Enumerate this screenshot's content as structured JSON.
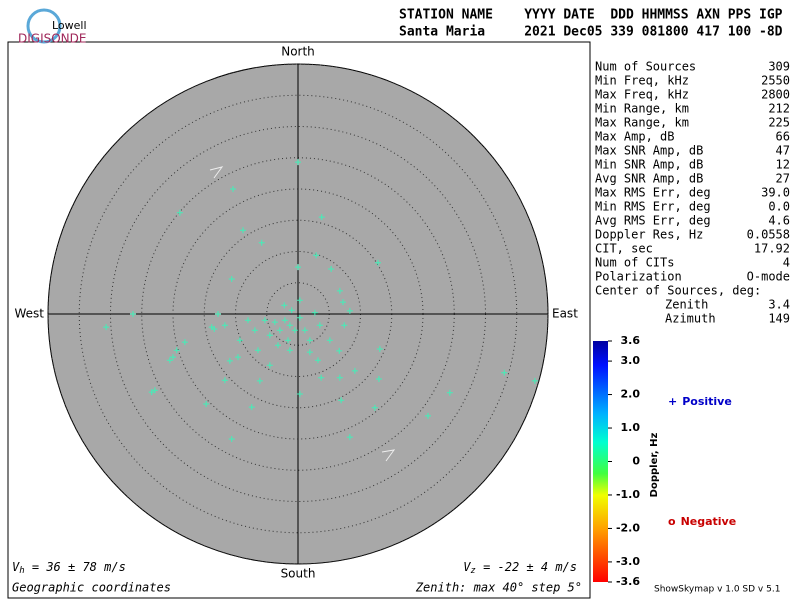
{
  "chart_data": {
    "type": "skymap",
    "logo": {
      "top": "Lowell",
      "bottom": "DIGISONDE"
    },
    "header": [
      "STATION NAME    YYYY DATE  DDD HHMMSS AXN PPS IGP",
      "Santa Maria     2021 Dec05 339 081800 417 100 -8D"
    ],
    "directions": {
      "north": "North",
      "south": "South",
      "east": "East",
      "west": "West"
    },
    "rlim": [
      0,
      40
    ],
    "rticks": [
      5,
      10,
      15,
      20,
      25,
      30,
      35,
      40
    ],
    "grid": true,
    "series": [
      {
        "name": "Positive",
        "symbol": "+",
        "color": "#0000c8",
        "marker_color": "#40f0b8",
        "x": [
          0,
          -10.4,
          -18.9,
          -8.8,
          3.8,
          -5.8,
          2.9,
          0,
          5.3,
          12.8,
          -10.6,
          6.7,
          7.2,
          8.3,
          -30.7,
          -26.4,
          -12.8,
          -13.4,
          -19.4,
          -20.5,
          -22.9,
          -14.7,
          -7.4,
          -10.6,
          6.9,
          8.3,
          12.3,
          20.8,
          24.3,
          33,
          37.9,
          12.95,
          13.1,
          9.1,
          3.7,
          0.3,
          -6.1,
          -11.7,
          -9.6,
          -18.1,
          -6.4,
          3.2,
          6.6,
          -1.3,
          -2.1,
          -1.3,
          -0.5,
          -2.9,
          -3.7,
          0.3,
          1.1,
          -1.6,
          -4.5,
          -5.3,
          -1,
          -2.2,
          1.9,
          3.5,
          -6.9,
          -8,
          0.3,
          2.7,
          -3.2,
          -11.7,
          -9.3,
          1.9,
          5.1,
          7.4,
          -23.4,
          -20,
          -13.8,
          -10.9,
          -4.5,
          6.7
        ],
        "y": [
          24.3,
          20,
          16.2,
          13.4,
          15.5,
          11.4,
          9.4,
          7.5,
          7.2,
          8.2,
          5.6,
          3.7,
          1.9,
          0.5,
          -2.1,
          0,
          0,
          -2.4,
          -5.8,
          -7.4,
          -12.2,
          -14.4,
          -14.9,
          -20,
          -13.8,
          -19.7,
          -15,
          -16.3,
          -12.6,
          -9.4,
          -10.7,
          -10.4,
          -5.6,
          -9.1,
          -10.2,
          -12.8,
          -10.7,
          -10.6,
          -6.9,
          -4.5,
          -5.8,
          -7.4,
          -5.9,
          -5.8,
          -1,
          -1.8,
          -2.6,
          -2.6,
          -1.3,
          -0.6,
          -2.6,
          -4.2,
          -3.4,
          -1,
          0.6,
          1.4,
          -4.2,
          -1.8,
          -2.6,
          -1,
          2.2,
          0.2,
          -5,
          -1.8,
          -4.2,
          -6.1,
          -4.2,
          -1.8,
          -12.5,
          -6.9,
          -2.1,
          -7.5,
          -8.2,
          -10.2
        ]
      },
      {
        "name": "Negative",
        "symbol": "o",
        "color": "#c80000",
        "marker_color": "#ff0000",
        "x": [],
        "y": []
      }
    ],
    "stats": [
      {
        "label": "Num of Sources",
        "value": "309"
      },
      {
        "label": "Min Freq, kHz",
        "value": "2550"
      },
      {
        "label": "Max Freq, kHz",
        "value": "2800"
      },
      {
        "label": "Min Range, km",
        "value": "212"
      },
      {
        "label": "Max Range, km",
        "value": "225"
      },
      {
        "label": "Max Amp, dB",
        "value": "66"
      },
      {
        "label": "Max SNR Amp, dB",
        "value": "47"
      },
      {
        "label": "Min SNR Amp, dB",
        "value": "12"
      },
      {
        "label": "Avg SNR Amp, dB",
        "value": "27"
      },
      {
        "label": "Max RMS Err, deg",
        "value": "39.0"
      },
      {
        "label": "Min RMS Err, deg",
        "value": "0.0"
      },
      {
        "label": "Avg RMS Err, deg",
        "value": "4.6"
      },
      {
        "label": "Doppler Res, Hz",
        "value": "0.0558"
      },
      {
        "label": "CIT, sec",
        "value": "17.92"
      },
      {
        "label": "Num of CITs",
        "value": "4"
      },
      {
        "label": "Polarization",
        "value": "O-mode"
      }
    ],
    "center": {
      "label": "Center of Sources, deg:",
      "rows": [
        {
          "label": "Zenith",
          "value": "3.4"
        },
        {
          "label": "Azimuth",
          "value": "149"
        }
      ]
    },
    "colorbar": {
      "label": "Doppler, Hz",
      "lim": [
        -3.6,
        3.6
      ],
      "ticks": [
        3.6,
        {
          "value": 3,
          "label": "3.0"
        },
        {
          "value": 2,
          "label": "2.0"
        },
        {
          "value": 1,
          "label": "1.0"
        },
        0,
        {
          "value": -1,
          "label": "-1.0"
        },
        {
          "value": -2,
          "label": "-2.0"
        },
        {
          "value": -3,
          "label": "-3.0"
        },
        -3.6
      ]
    },
    "vh": {
      "symbol": "V",
      "sub": "h",
      "text": " = 36 ± 78 m/s"
    },
    "vz": {
      "symbol": "V",
      "sub": "z",
      "text": " = -22 ± 4 m/s"
    },
    "coords_note": "Geographic coordinates",
    "zenith_note": "Zenith: max 40°  step 5°",
    "version": "ShowSkymap v 1.0  SD v 5.1"
  }
}
